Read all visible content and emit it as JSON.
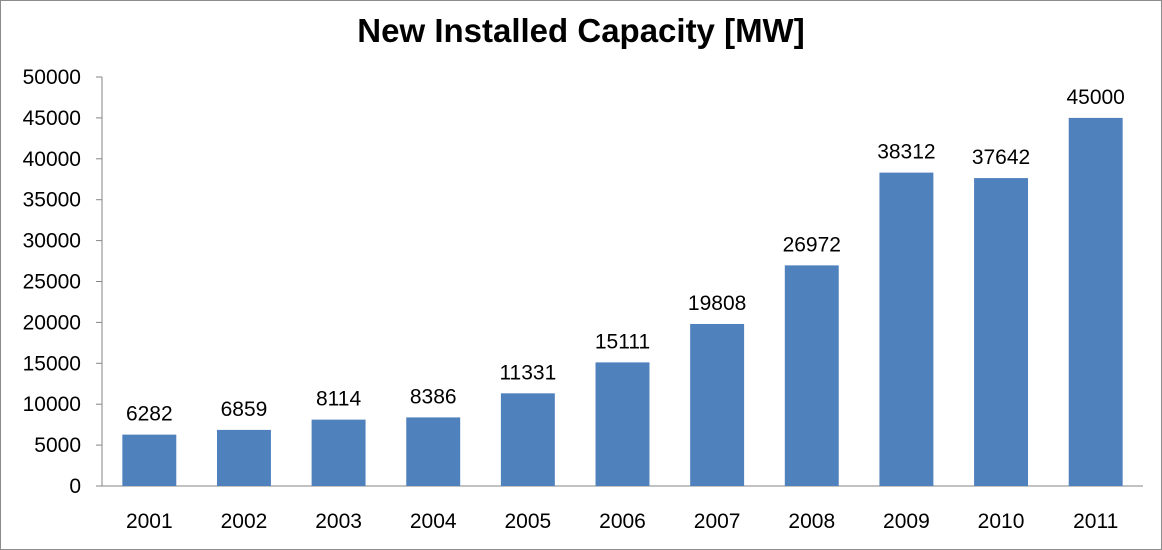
{
  "chart_data": {
    "type": "bar",
    "title": "New Installed Capacity [MW]",
    "categories": [
      "2001",
      "2002",
      "2003",
      "2004",
      "2005",
      "2006",
      "2007",
      "2008",
      "2009",
      "2010",
      "2011"
    ],
    "values": [
      6282,
      6859,
      8114,
      8386,
      11331,
      15111,
      19808,
      26972,
      38312,
      37642,
      45000
    ],
    "ylim": [
      0,
      50000
    ],
    "yticks": [
      "0",
      "5000",
      "10000",
      "15000",
      "20000",
      "25000",
      "30000",
      "35000",
      "40000",
      "45000",
      "50000"
    ],
    "xlabel": "",
    "ylabel": "",
    "grid": false,
    "legend": "none",
    "bar_color": "#4f81bd",
    "data_labels": true
  }
}
